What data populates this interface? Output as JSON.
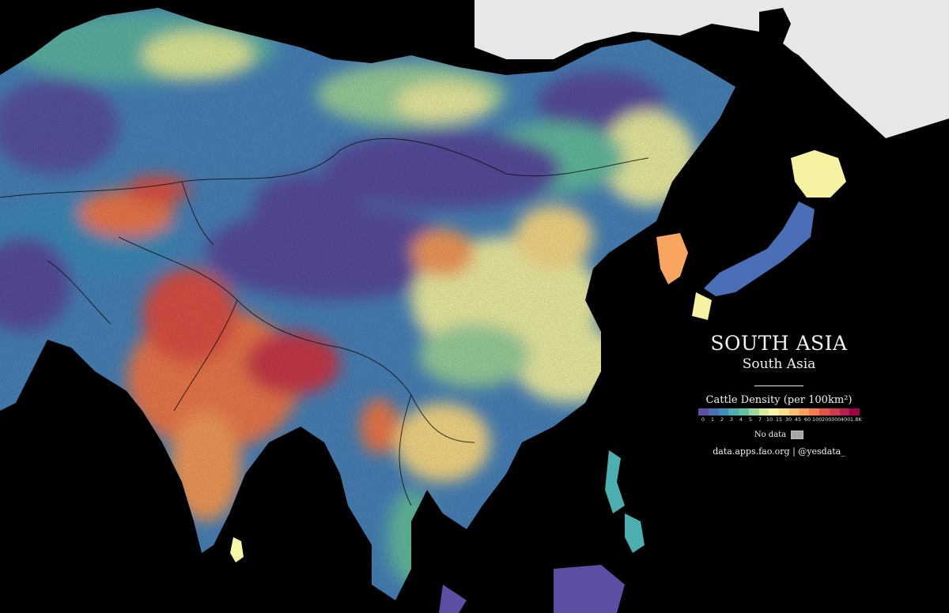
{
  "map": {
    "title": "SOUTH ASIA",
    "subtitle": "South Asia",
    "legend": {
      "title": "Cattle Density (per 100km²)",
      "ticks": [
        "0",
        "1",
        "2",
        "3",
        "4",
        "5",
        "7",
        "10",
        "15",
        "30",
        "45",
        "60",
        "100",
        "200",
        "300",
        "400",
        "1.8K"
      ],
      "colors": [
        "#5a4fa2",
        "#4a6fb7",
        "#3d8fbf",
        "#4cb0b0",
        "#66c2a5",
        "#9ed6a0",
        "#d6ee9b",
        "#f6f6a8",
        "#fee08b",
        "#fdc072",
        "#fa9f5c",
        "#f47c4e",
        "#e35346",
        "#cf3a4c",
        "#b3214f",
        "#9e0142"
      ],
      "no_data_label": "No data",
      "no_data_color": "#a6a6a6"
    },
    "source": "data.apps.fao.org | @yesdata_",
    "colors": {
      "ocean": "#000000",
      "outside_region": "#e6e7e8",
      "border_lines": "#111111"
    }
  }
}
